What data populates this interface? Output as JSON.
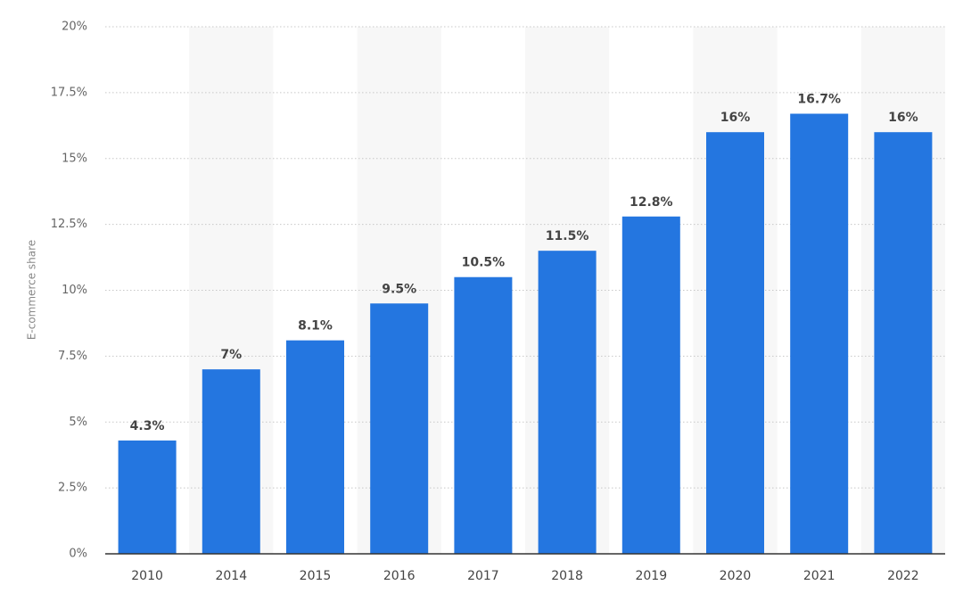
{
  "chart_data": {
    "type": "bar",
    "y_label": "E-commerce share",
    "categories": [
      "2010",
      "2014",
      "2015",
      "2016",
      "2017",
      "2018",
      "2019",
      "2020",
      "2021",
      "2022"
    ],
    "values": [
      4.3,
      7,
      8.1,
      9.5,
      10.5,
      11.5,
      12.8,
      16,
      16.7,
      16
    ],
    "value_labels": [
      "4.3%",
      "7%",
      "8.1%",
      "9.5%",
      "10.5%",
      "11.5%",
      "12.8%",
      "16%",
      "16.7%",
      "16%"
    ],
    "color": "#2476e0",
    "ylim": [
      0,
      20
    ],
    "yticks": [
      {
        "value": 0,
        "label": "0%"
      },
      {
        "value": 2.5,
        "label": "2.5%"
      },
      {
        "value": 5,
        "label": "5%"
      },
      {
        "value": 7.5,
        "label": "7.5%"
      },
      {
        "value": 10,
        "label": "10%"
      },
      {
        "value": 12.5,
        "label": "12.5%"
      },
      {
        "value": 15,
        "label": "15%"
      },
      {
        "value": 17.5,
        "label": "17.5%"
      },
      {
        "value": 20,
        "label": "20%"
      }
    ],
    "grid": true
  }
}
